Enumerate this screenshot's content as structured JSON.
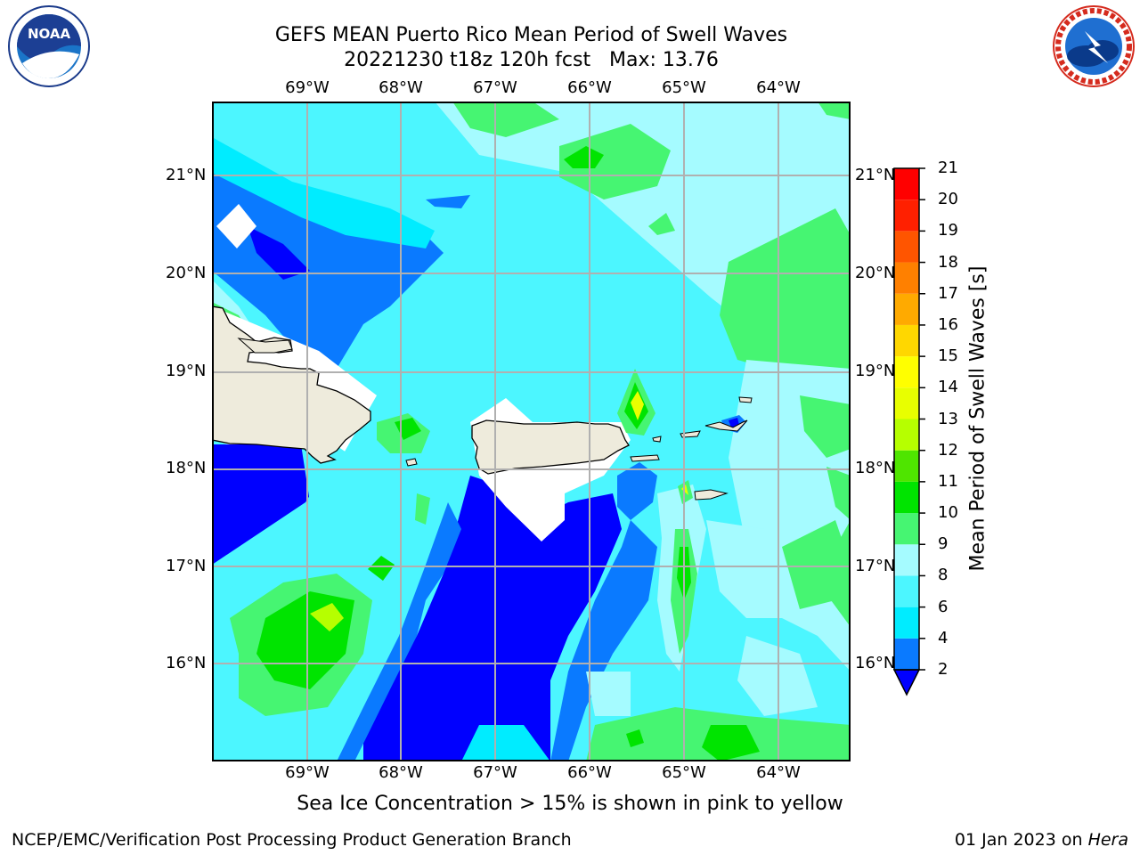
{
  "title_line1": "GEFS MEAN Puerto Rico Mean Period of Swell Waves",
  "title_line2": "20221230 t18z 120h fcst   Max: 13.76",
  "lon_labels": [
    "69°W",
    "68°W",
    "67°W",
    "66°W",
    "65°W",
    "64°W"
  ],
  "lat_labels": [
    "21°N",
    "20°N",
    "19°N",
    "18°N",
    "17°N",
    "16°N"
  ],
  "colorbar": {
    "label": "Mean Period of Swell Waves [s]",
    "ticks": [
      "2",
      "4",
      "6",
      "8",
      "9",
      "10",
      "11",
      "12",
      "13",
      "14",
      "15",
      "16",
      "17",
      "18",
      "19",
      "20",
      "21"
    ],
    "colors": [
      "#0000ff",
      "#0a7aff",
      "#00ecff",
      "#4cf6ff",
      "#a5fbff",
      "#46f572",
      "#00e400",
      "#4fe500",
      "#b6ff00",
      "#e8ff00",
      "#ffff00",
      "#ffd700",
      "#ffaa00",
      "#ff8000",
      "#ff5500",
      "#ff2000",
      "#ff0000"
    ],
    "below_color": "#0000ff"
  },
  "footnote": "Sea Ice Concentration > 15% is shown in pink to yellow",
  "credit_left": "NCEP/EMC/Verification Post Processing Product Generation Branch",
  "credit_date": "01 Jan 2023 on ",
  "credit_host": "Hera",
  "logo_noaa_text": "NOAA",
  "logo_noaa_ring": "NATIONAL OCEANIC AND ATMOSPHERIC ADMINISTRATION · U.S. DEPARTMENT OF COMMERCE",
  "logo_nws_ring": "NATIONAL WEATHER SERVICE"
}
